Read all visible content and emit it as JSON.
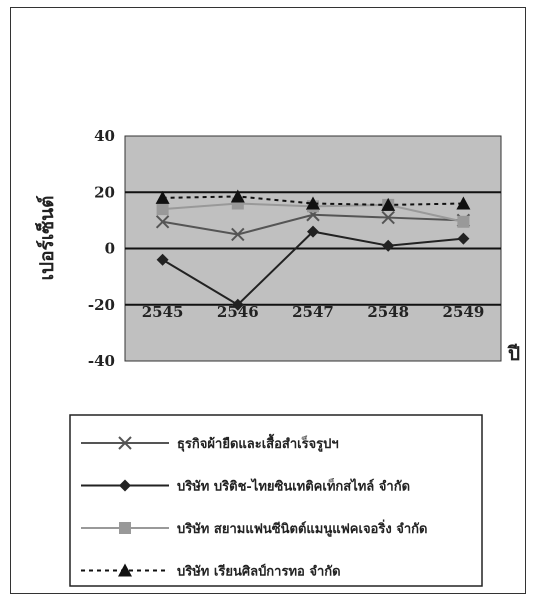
{
  "chart_data": {
    "type": "line",
    "title": "",
    "ylabel": "เปอร์เซ็นต์",
    "xlabel": "ปี",
    "categories": [
      "2545",
      "2546",
      "2547",
      "2548",
      "2549"
    ],
    "ylim": [
      -40,
      40
    ],
    "yticks": [
      40,
      20,
      0,
      -20,
      -40
    ],
    "plot_background": "#c0c0c0",
    "legend_position": "bottom",
    "series": [
      {
        "name": "ธุรกิจผ้ายืดและเสื้อสำเร็จรูปฯ",
        "values": [
          9.5,
          5,
          12,
          11,
          10
        ],
        "color": "#555555",
        "marker": "x",
        "dash": false
      },
      {
        "name": "บริษัท บริติช-ไทยซินเทติคเท็กสไทล์ จำกัด",
        "values": [
          -4,
          -20,
          6,
          1,
          3.5
        ],
        "color": "#222222",
        "marker": "diamond",
        "dash": false
      },
      {
        "name": "บริษัท สยามแฟนซีนิตต์แมนูแฟคเจอริ่ง จำกัด",
        "values": [
          14,
          16,
          15,
          15.5,
          9.5
        ],
        "color": "#999999",
        "marker": "square",
        "dash": false
      },
      {
        "name": "บริษัท เรียนศิลป์การทอ จำกัด",
        "values": [
          18,
          18.5,
          16,
          15.5,
          16
        ],
        "color": "#111111",
        "marker": "triangle",
        "dash": true
      }
    ]
  }
}
